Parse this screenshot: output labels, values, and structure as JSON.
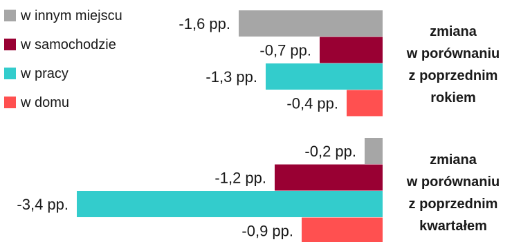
{
  "chart_data": {
    "type": "bar",
    "orientation": "horizontal",
    "unit": "pp.",
    "legend": {
      "placement": "top-left",
      "items": [
        {
          "name": "w innym miejscu",
          "color": "#a6a6a6"
        },
        {
          "name": "w samochodzie",
          "color": "#990033"
        },
        {
          "name": "w pracy",
          "color": "#33cccc"
        },
        {
          "name": "w domu",
          "color": "#ff5050"
        }
      ]
    },
    "series": [
      "w innym miejscu",
      "w samochodzie",
      "w pracy",
      "w domu"
    ],
    "groups": [
      {
        "title_lines": [
          "zmiana",
          "w porównaniu",
          "z poprzednim",
          "rokiem"
        ],
        "values": [
          -1.6,
          -0.7,
          -1.3,
          -0.4
        ],
        "labels": [
          "-1,6 pp.",
          "-0,7 pp.",
          "-1,3 pp.",
          "-0,4 pp."
        ]
      },
      {
        "title_lines": [
          "zmiana",
          "w porównaniu",
          "z poprzednim",
          "kwartałem"
        ],
        "values": [
          -0.2,
          -1.2,
          -3.4,
          -0.9
        ],
        "labels": [
          "-0,2 pp.",
          "-1,2 pp.",
          "-3,4 pp.",
          "-0,9 pp."
        ]
      }
    ],
    "grid": false
  }
}
